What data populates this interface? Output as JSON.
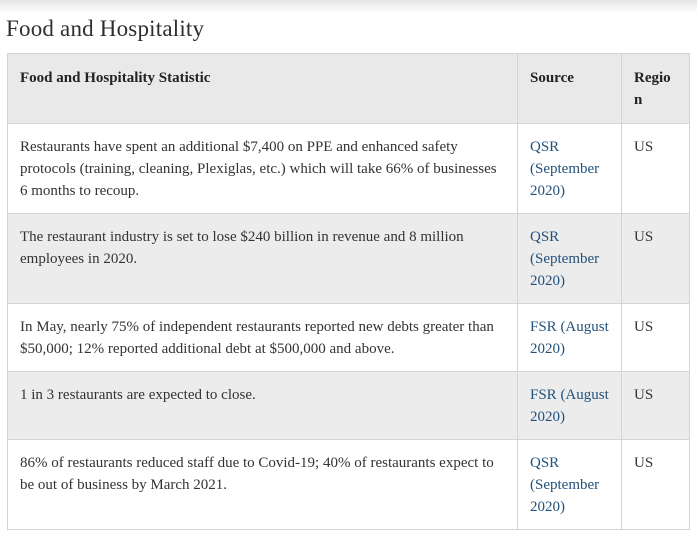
{
  "page": {
    "title": "Food and Hospitality"
  },
  "colors": {
    "link": "#23527c",
    "header_bg": "#e9e9e9",
    "stripe_bg": "#ececec",
    "border": "#d4d4d4",
    "text": "#333333",
    "title": "#2e2e2e"
  },
  "table": {
    "headers": [
      "Food and Hospitality Statistic",
      "Source",
      "Region"
    ],
    "rows": [
      {
        "statistic": "Restaurants have spent an additional $7,400 on PPE and enhanced safety protocols (training, cleaning, Plexiglas, etc.) which will take 66% of businesses 6 months to recoup.",
        "source": "QSR (September 2020)",
        "region": "US"
      },
      {
        "statistic": "The restaurant industry is set to lose $240 billion in revenue and 8 million employees in 2020.",
        "source": "QSR (September 2020)",
        "region": "US"
      },
      {
        "statistic": "In May, nearly 75% of independent restaurants reported new debts greater than $50,000; 12% reported additional debt at $500,000 and above.",
        "source": "FSR (August 2020)",
        "region": "US"
      },
      {
        "statistic": "1 in 3 restaurants are expected to close.",
        "source": "FSR (August 2020)",
        "region": "US"
      },
      {
        "statistic": "86% of restaurants reduced staff due to Covid-19; 40% of restaurants expect to be out of business by March 2021.",
        "source": "QSR (September 2020)",
        "region": "US"
      }
    ]
  }
}
